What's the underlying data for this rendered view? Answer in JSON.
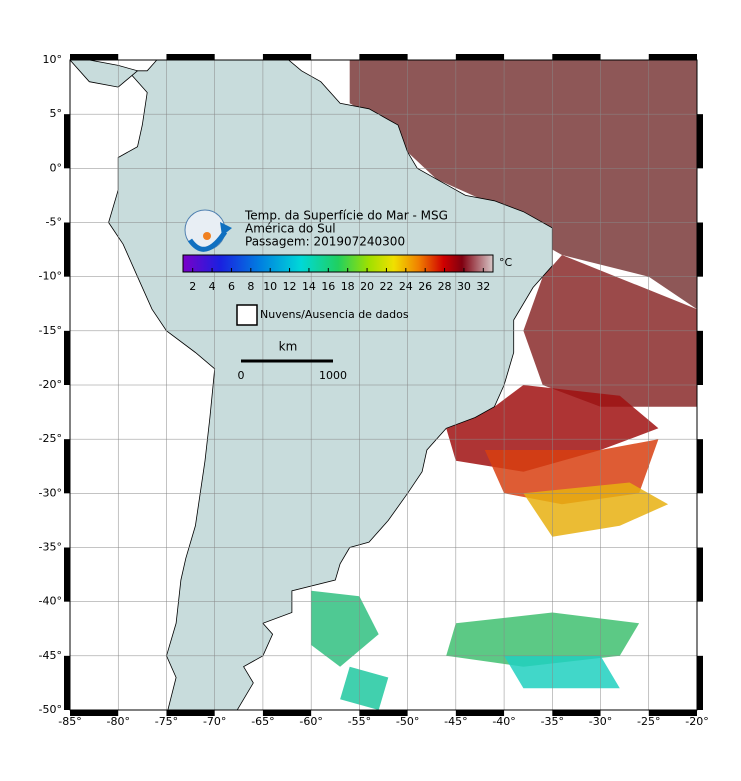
{
  "title": "Temp. da Superfície do Mar - MSG",
  "region": "América do Sul",
  "pass": "Passagem: 201907240300",
  "colorbar": {
    "unit": "°C",
    "range": [
      1,
      33
    ],
    "ticks": [
      2,
      4,
      6,
      8,
      10,
      12,
      14,
      16,
      18,
      20,
      22,
      24,
      26,
      28,
      30,
      32
    ]
  },
  "legend": "Nuvens/Ausencia de dados",
  "scale": {
    "unit": "km",
    "labels": [
      "0",
      "1000"
    ]
  },
  "lon_ticks": [
    {
      "value": -85,
      "label": "-85°"
    },
    {
      "value": -80,
      "label": "-80°"
    },
    {
      "value": -75,
      "label": "-75°"
    },
    {
      "value": -70,
      "label": "-70°"
    },
    {
      "value": -65,
      "label": "-65°"
    },
    {
      "value": -60,
      "label": "-60°"
    },
    {
      "value": -55,
      "label": "-55°"
    },
    {
      "value": -50,
      "label": "-50°"
    },
    {
      "value": -45,
      "label": "-45°"
    },
    {
      "value": -40,
      "label": "-40°"
    },
    {
      "value": -35,
      "label": "-35°"
    },
    {
      "value": -30,
      "label": "-30°"
    },
    {
      "value": -25,
      "label": "-25°"
    },
    {
      "value": -20,
      "label": "-20°"
    }
  ],
  "lat_ticks": [
    {
      "value": 10,
      "label": "10°"
    },
    {
      "value": 5,
      "label": "5°"
    },
    {
      "value": 0,
      "label": "0°"
    },
    {
      "value": -5,
      "label": "-5°"
    },
    {
      "value": -10,
      "label": "-10°"
    },
    {
      "value": -15,
      "label": "-15°"
    },
    {
      "value": -20,
      "label": "-20°"
    },
    {
      "value": -25,
      "label": "-25°"
    },
    {
      "value": -30,
      "label": "-30°"
    },
    {
      "value": -35,
      "label": "-35°"
    },
    {
      "value": -40,
      "label": "-40°"
    },
    {
      "value": -45,
      "label": "-45°"
    },
    {
      "value": -50,
      "label": "-50°"
    }
  ]
}
